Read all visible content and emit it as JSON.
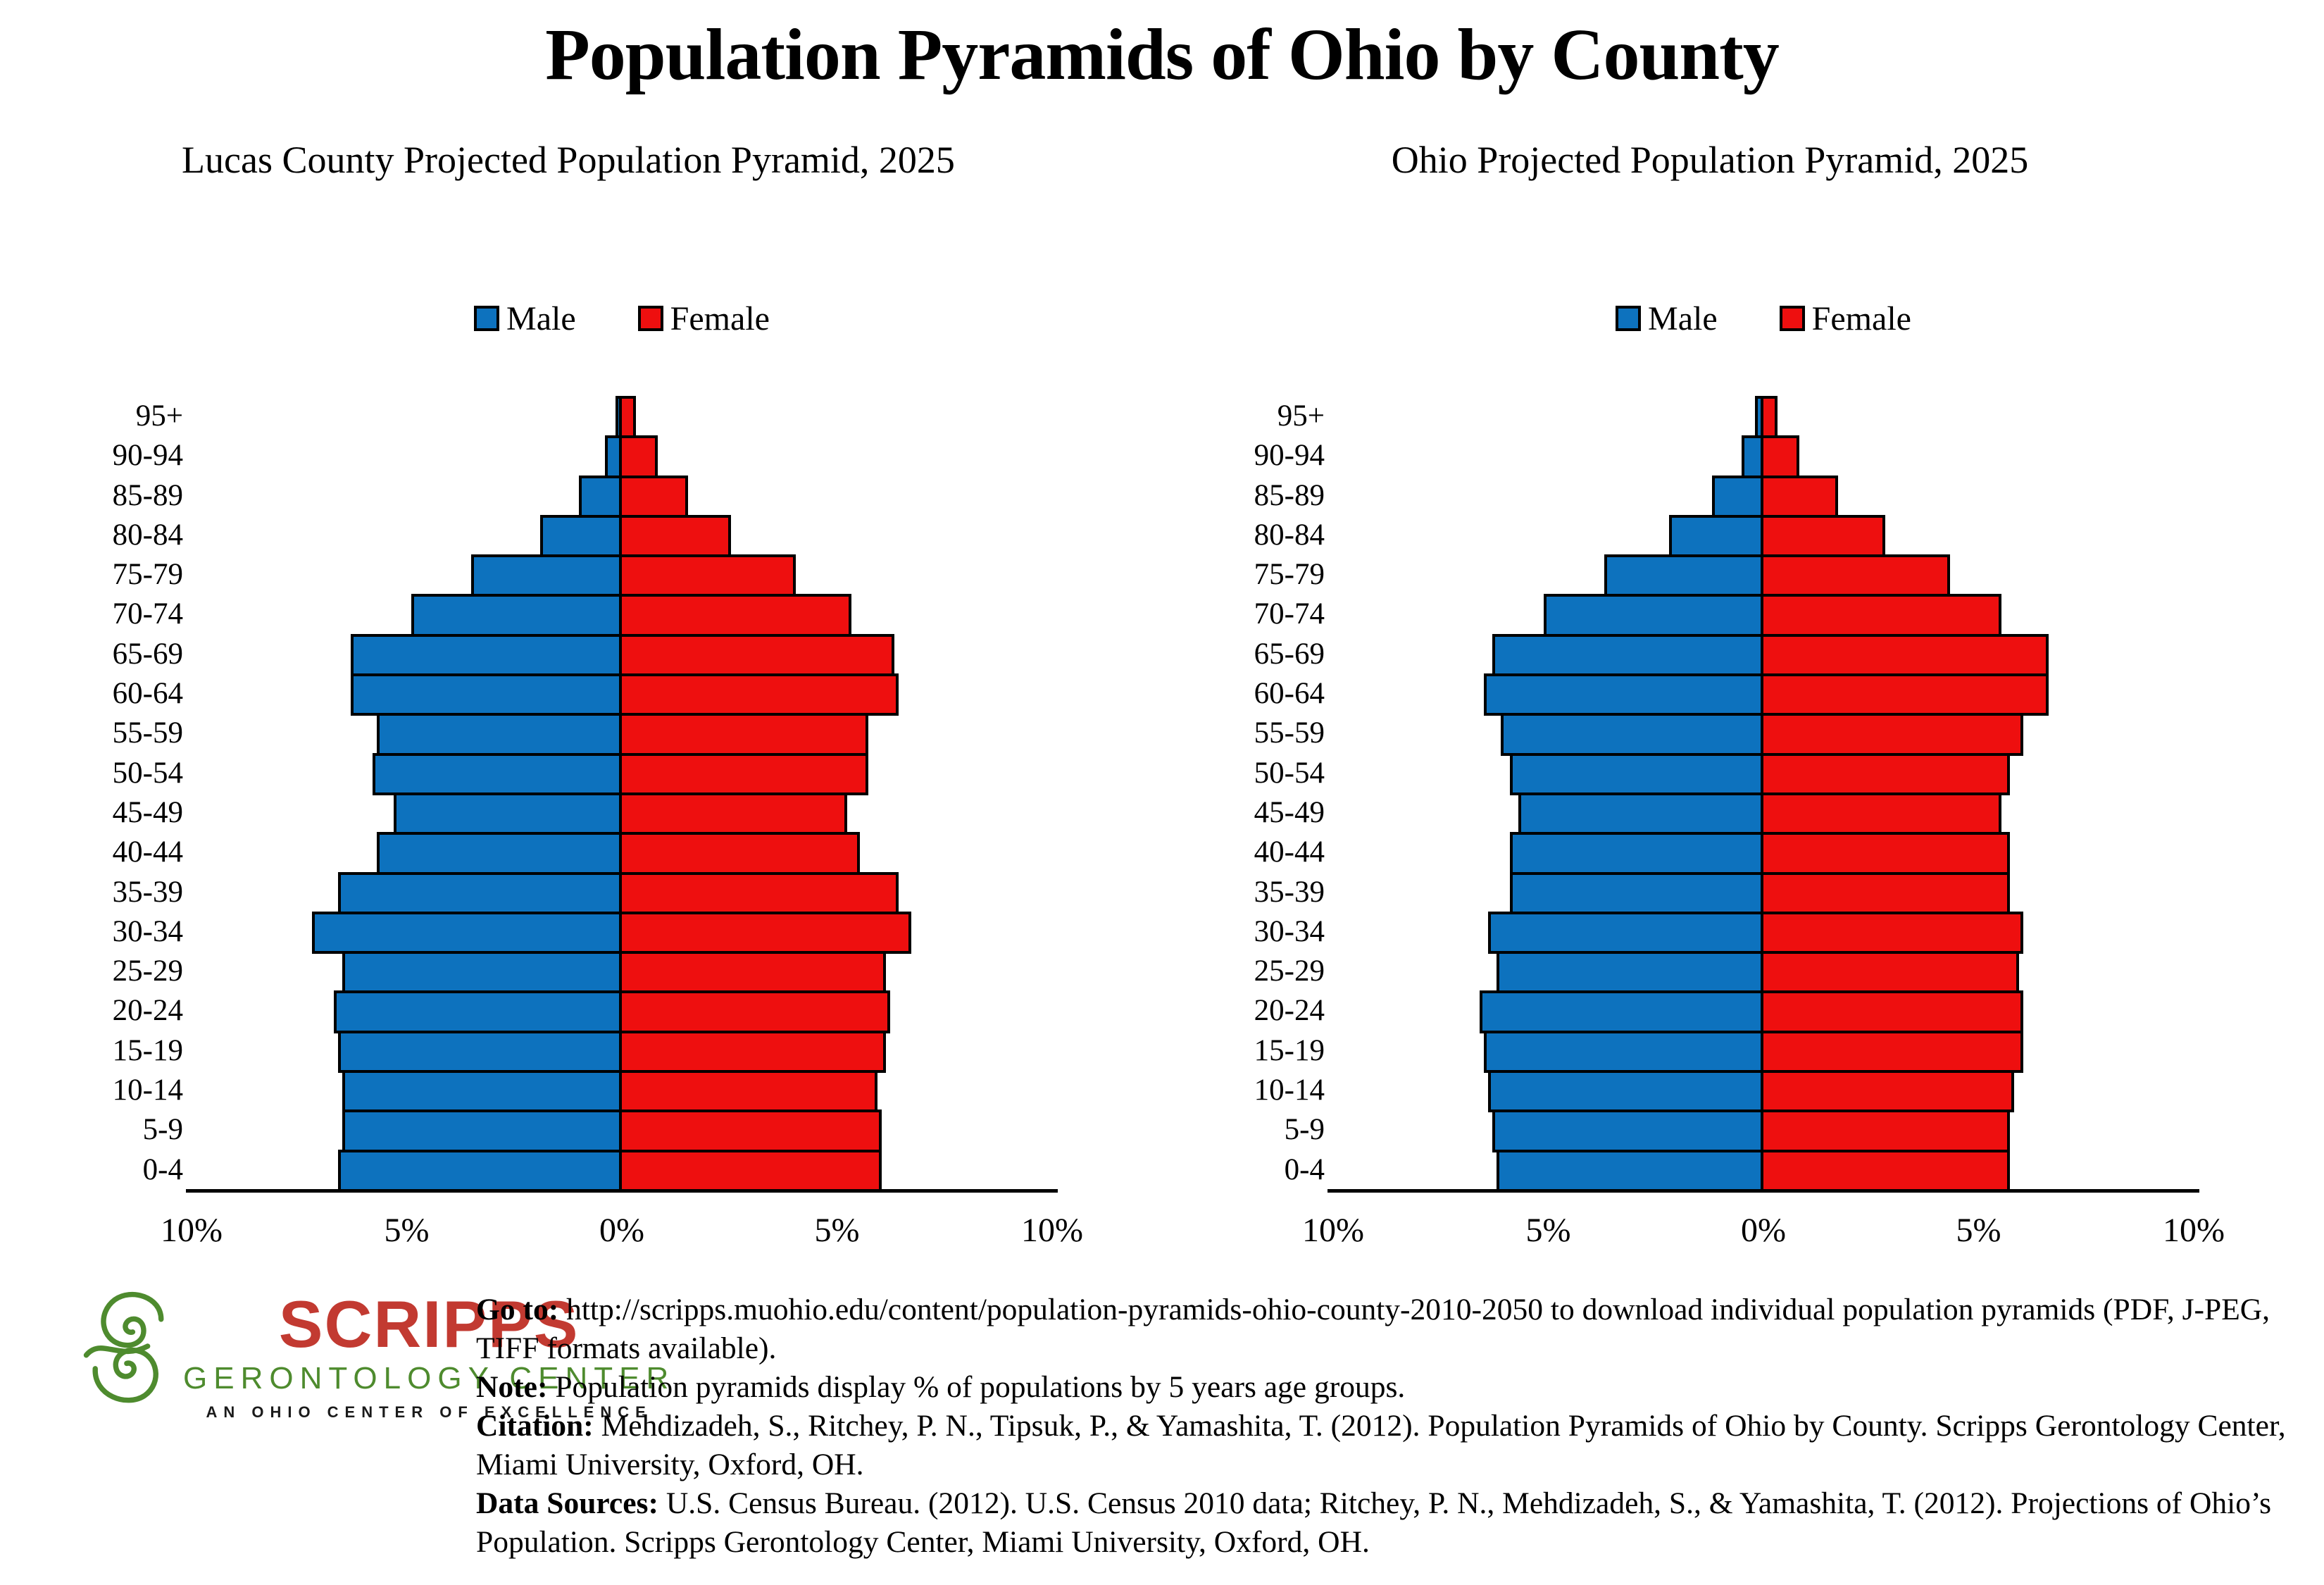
{
  "title": "Population Pyramids of Ohio by County",
  "legend": {
    "male": "Male",
    "female": "Female"
  },
  "colors": {
    "male": "#0d72be",
    "female": "#ee0f0f",
    "logo_red": "#c23a31",
    "logo_green": "#4e8b2e"
  },
  "chart_data": [
    {
      "type": "bar",
      "subtype": "population-pyramid",
      "title": "Lucas County Projected Population Pyramid, 2025",
      "units": "% of population by 5-year age group",
      "categories": [
        "95+",
        "90-94",
        "85-89",
        "80-84",
        "75-79",
        "70-74",
        "65-69",
        "60-64",
        "55-59",
        "50-54",
        "45-49",
        "40-44",
        "35-39",
        "30-34",
        "25-29",
        "20-24",
        "15-19",
        "10-14",
        "5-9",
        "0-4"
      ],
      "series": [
        {
          "name": "Male",
          "values": [
            0.15,
            0.4,
            1.0,
            1.9,
            3.5,
            4.9,
            6.3,
            6.3,
            5.7,
            5.8,
            5.3,
            5.7,
            6.6,
            7.2,
            6.5,
            6.7,
            6.6,
            6.5,
            6.5,
            6.6
          ]
        },
        {
          "name": "Female",
          "values": [
            0.4,
            0.9,
            1.6,
            2.6,
            4.1,
            5.4,
            6.4,
            6.5,
            5.8,
            5.8,
            5.3,
            5.6,
            6.5,
            6.8,
            6.2,
            6.3,
            6.2,
            6.0,
            6.1,
            6.1
          ]
        }
      ],
      "x_ticks": [
        "10%",
        "5%",
        "0%",
        "5%",
        "10%"
      ],
      "x_range_percent": [
        -10,
        10
      ],
      "legend_position": "top"
    },
    {
      "type": "bar",
      "subtype": "population-pyramid",
      "title": "Ohio Projected Population Pyramid, 2025",
      "units": "% of population by 5-year age group",
      "categories": [
        "95+",
        "90-94",
        "85-89",
        "80-84",
        "75-79",
        "70-74",
        "65-69",
        "60-64",
        "55-59",
        "50-54",
        "45-49",
        "40-44",
        "35-39",
        "30-34",
        "25-29",
        "20-24",
        "15-19",
        "10-14",
        "5-9",
        "0-4"
      ],
      "series": [
        {
          "name": "Male",
          "values": [
            0.2,
            0.5,
            1.2,
            2.2,
            3.7,
            5.1,
            6.3,
            6.5,
            6.1,
            5.9,
            5.7,
            5.9,
            5.9,
            6.4,
            6.2,
            6.6,
            6.5,
            6.4,
            6.3,
            6.2
          ]
        },
        {
          "name": "Female",
          "values": [
            0.4,
            0.9,
            1.8,
            2.9,
            4.4,
            5.6,
            6.7,
            6.7,
            6.1,
            5.8,
            5.6,
            5.8,
            5.8,
            6.1,
            6.0,
            6.1,
            6.1,
            5.9,
            5.8,
            5.8
          ]
        }
      ],
      "x_ticks": [
        "10%",
        "5%",
        "0%",
        "5%",
        "10%"
      ],
      "x_range_percent": [
        -10,
        10
      ],
      "legend_position": "top"
    }
  ],
  "footer": {
    "logo": {
      "name": "SCRIPPS",
      "line2": "GERONTOLOGY CENTER",
      "line3": "AN OHIO CENTER OF EXCELLENCE"
    },
    "notes": [
      {
        "label": "Go to:",
        "text": " http://scripps.muohio.edu/content/population-pyramids-ohio-county-2010-2050 to download individual population pyramids (PDF, J-PEG, TIFF formats available)."
      },
      {
        "label": "Note:",
        "text": " Population pyramids display % of populations by 5 years age groups."
      },
      {
        "label": "Citation:",
        "text": " Mehdizadeh, S., Ritchey, P. N., Tipsuk, P., & Yamashita, T. (2012). Population Pyramids of Ohio by County. Scripps Gerontology Center, Miami University, Oxford, OH."
      },
      {
        "label": "Data Sources:",
        "text": " U.S. Census Bureau. (2012). U.S. Census 2010 data; Ritchey, P. N., Mehdizadeh, S., & Yamashita, T. (2012). Projections of Ohio’s Population. Scripps Gerontology Center, Miami University, Oxford, OH."
      }
    ]
  }
}
